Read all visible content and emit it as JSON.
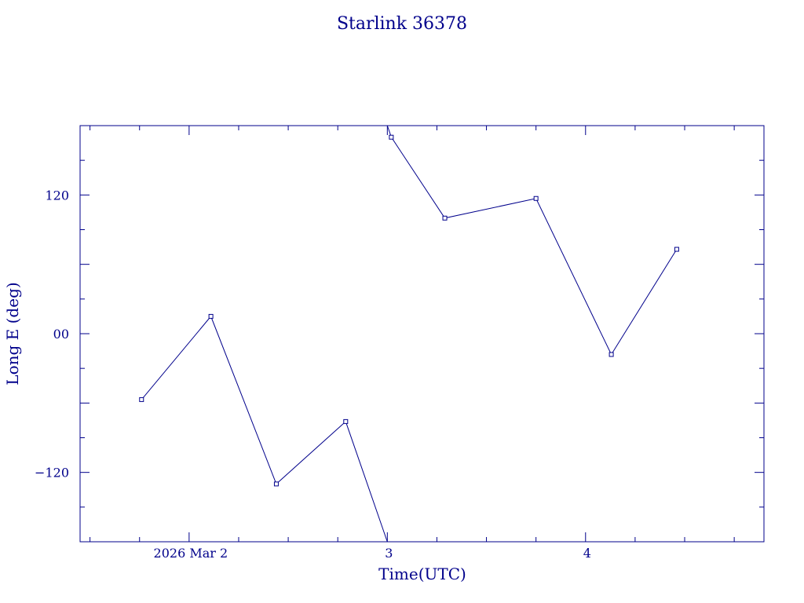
{
  "chart_data": {
    "type": "line",
    "title": "Starlink 36378",
    "xlabel": "Time(UTC)",
    "ylabel": "Long E (deg)",
    "x_unit": "days, March 2026",
    "xlim": [
      1.45,
      4.9
    ],
    "ylim": [
      -180,
      180
    ],
    "x_ticks": [
      {
        "value": 2,
        "label": "2026 Mar  2"
      },
      {
        "value": 3,
        "label": "3"
      },
      {
        "value": 4,
        "label": "4"
      }
    ],
    "y_ticks": [
      {
        "value": 120,
        "label": "120"
      },
      {
        "value": 0,
        "label": "00"
      },
      {
        "value": -120,
        "label": "−120"
      }
    ],
    "grid": false,
    "color": "#00008b",
    "segments": [
      {
        "points": [
          {
            "x": 1.76,
            "y": -57
          },
          {
            "x": 2.11,
            "y": 15
          },
          {
            "x": 2.44,
            "y": -130
          },
          {
            "x": 2.79,
            "y": -76
          },
          {
            "x": 3.0,
            "y": -180
          }
        ],
        "marked": [
          true,
          true,
          true,
          true,
          false
        ]
      },
      {
        "points": [
          {
            "x": 3.0,
            "y": 180
          },
          {
            "x": 3.02,
            "y": 170
          },
          {
            "x": 3.29,
            "y": 100
          },
          {
            "x": 3.75,
            "y": 117
          },
          {
            "x": 4.13,
            "y": -18
          },
          {
            "x": 4.46,
            "y": 73
          }
        ],
        "marked": [
          false,
          true,
          true,
          true,
          true,
          true
        ]
      }
    ]
  }
}
